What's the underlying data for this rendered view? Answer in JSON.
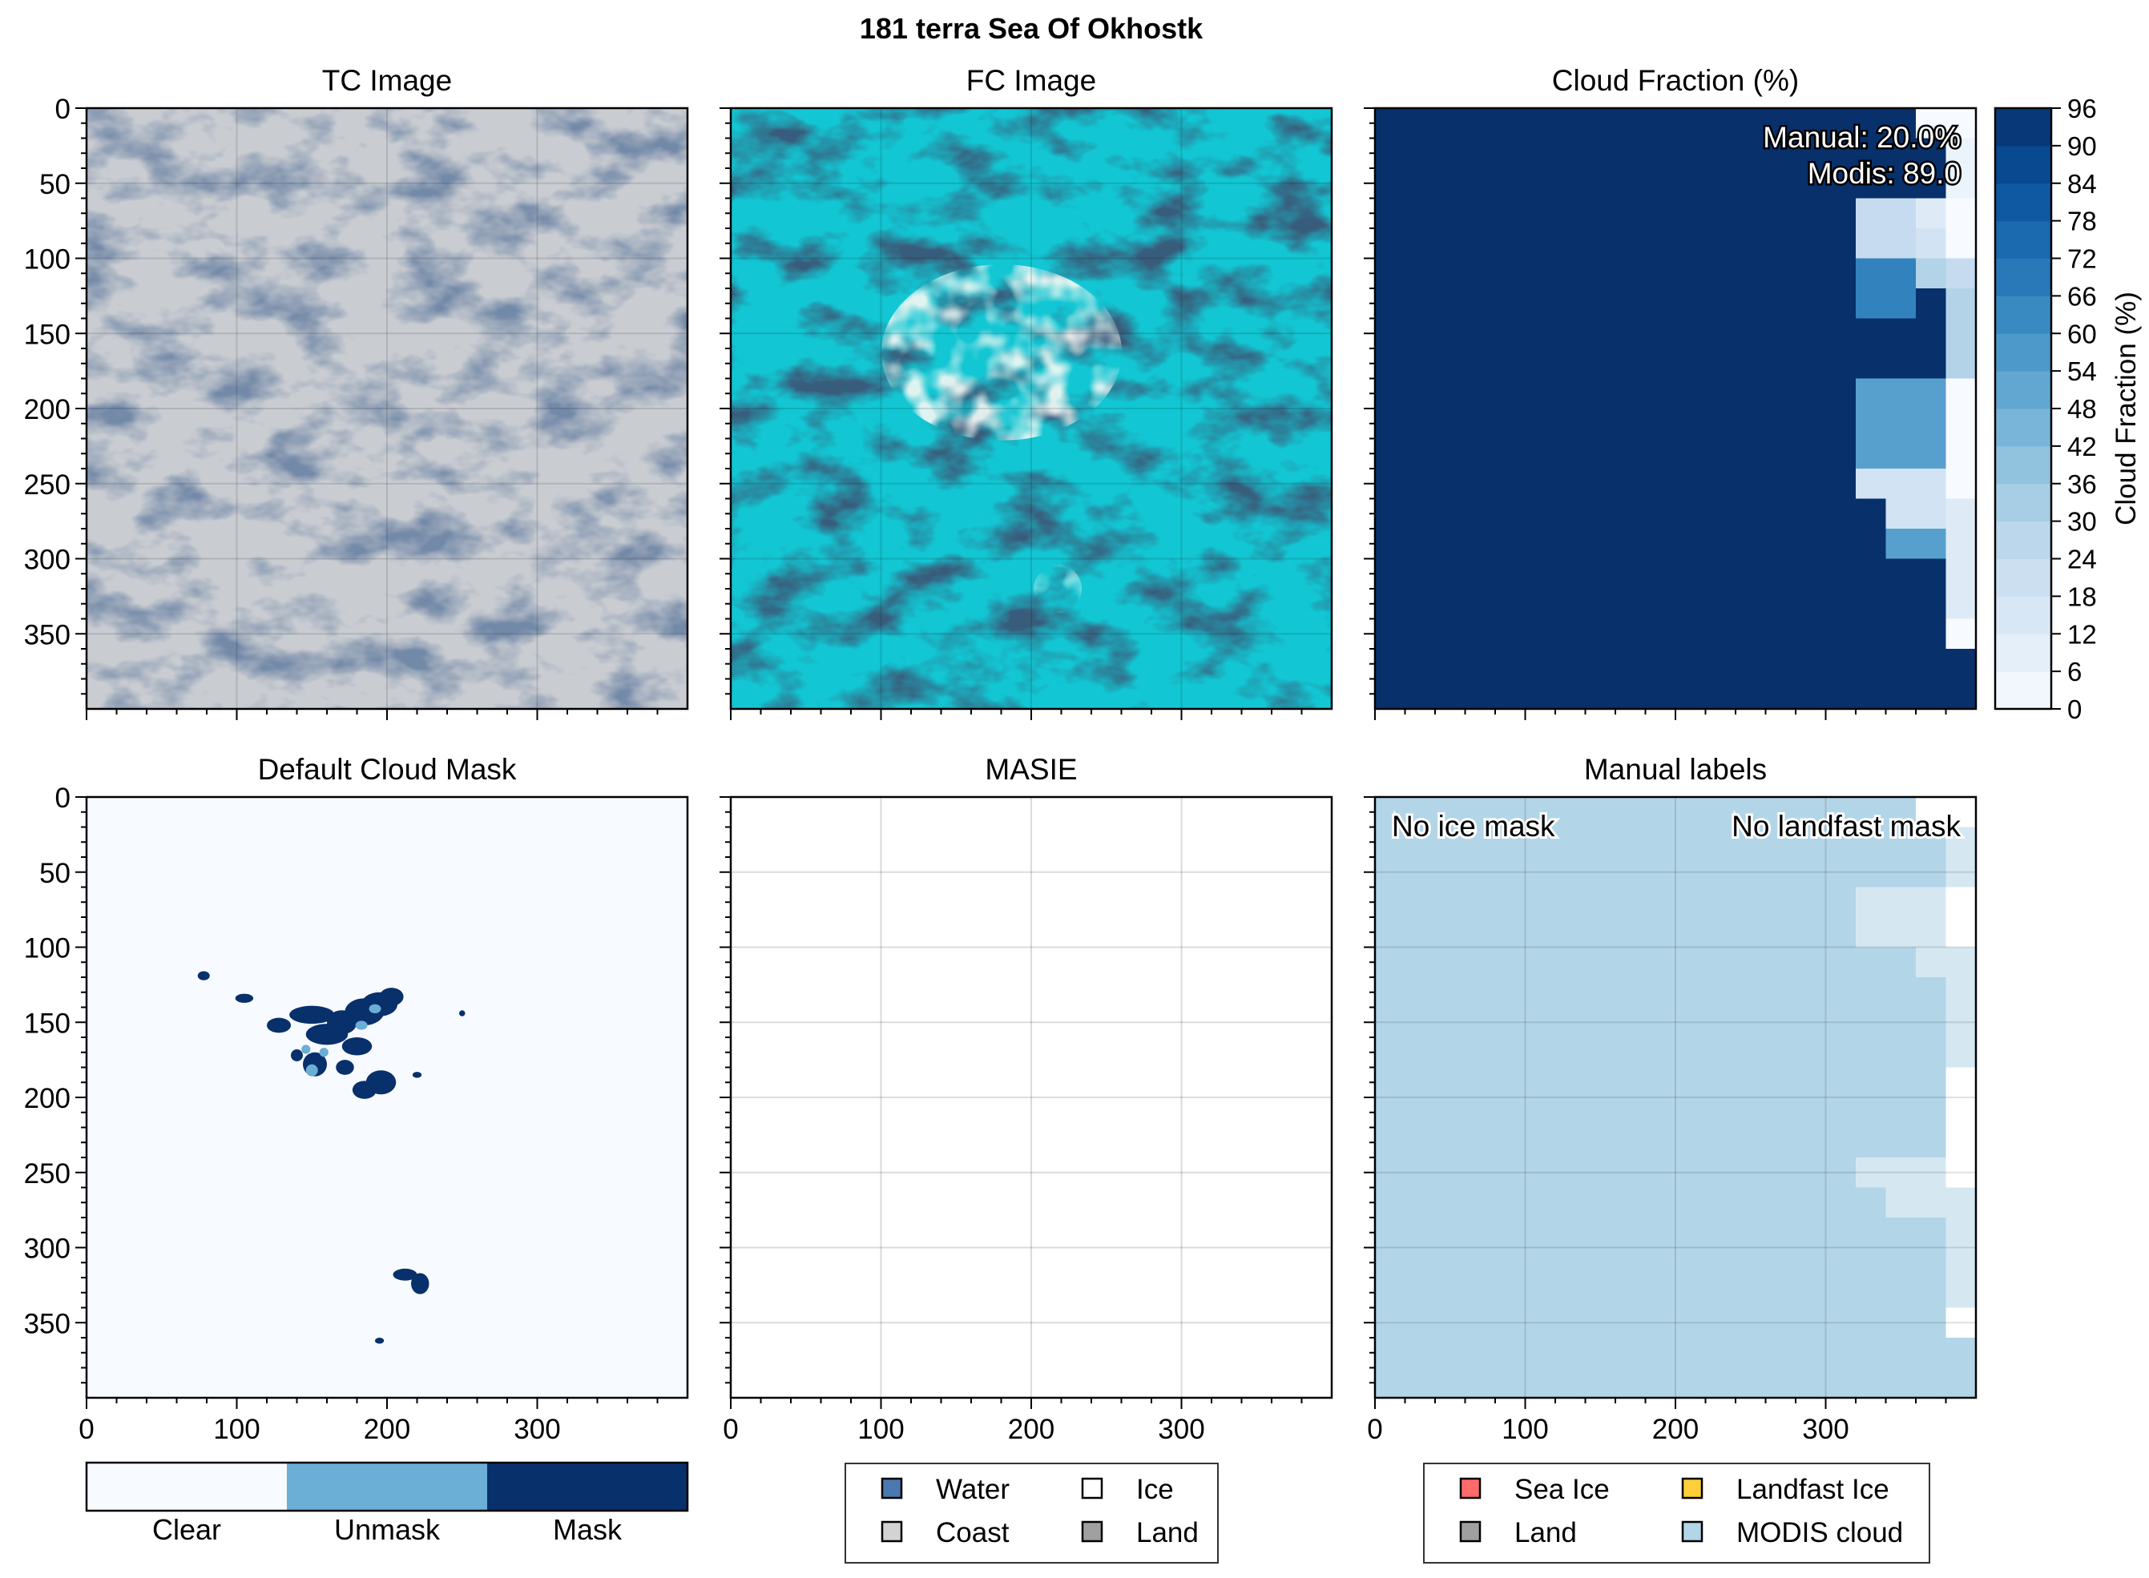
{
  "figure": {
    "suptitle": "181 terra Sea Of Okhostk"
  },
  "colors": {
    "tc_base": "#c9ccd1",
    "tc_dark": "#2c3f63",
    "fc_base": "#12c6d3",
    "fc_dark": "#0b1c34",
    "cf_high": "#08306b",
    "mask_clear": "#f7fbff",
    "mask_unmask": "#6baed6",
    "mask_mask": "#08306b",
    "modis_cloud": "#b3d5e8",
    "legend_water": "#4a78b0",
    "legend_coast": "#d3d3d3",
    "legend_ice": "#ffffff",
    "legend_land": "#a0a0a0",
    "legend_sea_ice": "#ff6b6b",
    "legend_landfast_ice": "#ffcf3a",
    "legend_land2": "#a0a0a0",
    "legend_modis_cloud": "#b3d5e8"
  },
  "axes": {
    "y_ticks": [
      "0",
      "50",
      "100",
      "150",
      "200",
      "250",
      "300",
      "350"
    ],
    "x_ticks": [
      "0",
      "100",
      "200",
      "300"
    ]
  },
  "panels": {
    "tc": {
      "title": "TC Image"
    },
    "fc": {
      "title": "FC Image"
    },
    "cf": {
      "title": "Cloud Fraction (%)",
      "annotation_manual": "Manual: 20.0%",
      "annotation_modis": "Modis: 89.0"
    },
    "cloud_mask": {
      "title": "Default Cloud Mask"
    },
    "masie": {
      "title": "MASIE"
    },
    "manual": {
      "title": "Manual labels",
      "no_ice": "No ice mask",
      "no_landfast": "No landfast mask"
    }
  },
  "colorbar": {
    "label": "Cloud Fraction (%)",
    "ticks": [
      "0",
      "6",
      "12",
      "18",
      "24",
      "30",
      "36",
      "42",
      "48",
      "54",
      "60",
      "66",
      "72",
      "78",
      "84",
      "90",
      "96"
    ]
  },
  "mask_colorbar": {
    "labels": [
      "Clear",
      "Unmask",
      "Mask"
    ]
  },
  "legend_masie": {
    "items": [
      "Water",
      "Ice",
      "Coast",
      "Land"
    ]
  },
  "legend_manual": {
    "items": [
      "Sea Ice",
      "Landfast Ice",
      "Land",
      "MODIS cloud"
    ]
  },
  "chart_data": [
    {
      "type": "heatmap",
      "title": "Cloud Fraction (%)",
      "xlim": [
        0,
        400
      ],
      "ylim": [
        400,
        0
      ],
      "colorbar": {
        "label": "Cloud Fraction (%)",
        "range": [
          0,
          96
        ],
        "step": 6
      },
      "annotations": [
        "Manual: 20.0%",
        "Modis: 89.0"
      ],
      "background_value": 96,
      "cells": [
        {
          "x": [
            360,
            400
          ],
          "y": [
            0,
            20
          ],
          "value": 0
        },
        {
          "x": [
            380,
            400
          ],
          "y": [
            20,
            60
          ],
          "value": 6
        },
        {
          "x": [
            360,
            380
          ],
          "y": [
            60,
            80
          ],
          "value": 12
        },
        {
          "x": [
            320,
            360
          ],
          "y": [
            60,
            100
          ],
          "value": 24
        },
        {
          "x": [
            360,
            380
          ],
          "y": [
            80,
            100
          ],
          "value": 18
        },
        {
          "x": [
            380,
            400
          ],
          "y": [
            60,
            100
          ],
          "value": 0
        },
        {
          "x": [
            380,
            400
          ],
          "y": [
            100,
            120
          ],
          "value": 24
        },
        {
          "x": [
            360,
            380
          ],
          "y": [
            100,
            120
          ],
          "value": 30
        },
        {
          "x": [
            320,
            360
          ],
          "y": [
            100,
            140
          ],
          "value": 66
        },
        {
          "x": [
            380,
            400
          ],
          "y": [
            120,
            180
          ],
          "value": 30
        },
        {
          "x": [
            380,
            400
          ],
          "y": [
            180,
            260
          ],
          "value": 0
        },
        {
          "x": [
            320,
            380
          ],
          "y": [
            180,
            240
          ],
          "value": 54
        },
        {
          "x": [
            320,
            380
          ],
          "y": [
            240,
            260
          ],
          "value": 18
        },
        {
          "x": [
            340,
            380
          ],
          "y": [
            260,
            280
          ],
          "value": 18
        },
        {
          "x": [
            340,
            380
          ],
          "y": [
            280,
            300
          ],
          "value": 54
        },
        {
          "x": [
            380,
            400
          ],
          "y": [
            260,
            340
          ],
          "value": 12
        },
        {
          "x": [
            380,
            400
          ],
          "y": [
            340,
            360
          ],
          "value": 0
        }
      ]
    },
    {
      "type": "heatmap",
      "title": "Default Cloud Mask",
      "xlim": [
        0,
        400
      ],
      "ylim": [
        400,
        0
      ],
      "classes": [
        "Clear",
        "Unmask",
        "Mask"
      ],
      "background_class": "Clear"
    },
    {
      "type": "heatmap",
      "title": "MASIE",
      "xlim": [
        0,
        400
      ],
      "ylim": [
        400,
        0
      ],
      "legend": [
        "Water",
        "Ice",
        "Coast",
        "Land"
      ]
    },
    {
      "type": "heatmap",
      "title": "Manual labels",
      "xlim": [
        0,
        400
      ],
      "ylim": [
        400,
        0
      ],
      "legend": [
        "Sea Ice",
        "Landfast Ice",
        "Land",
        "MODIS cloud"
      ],
      "annotations": [
        "No ice mask",
        "No landfast mask"
      ]
    }
  ]
}
